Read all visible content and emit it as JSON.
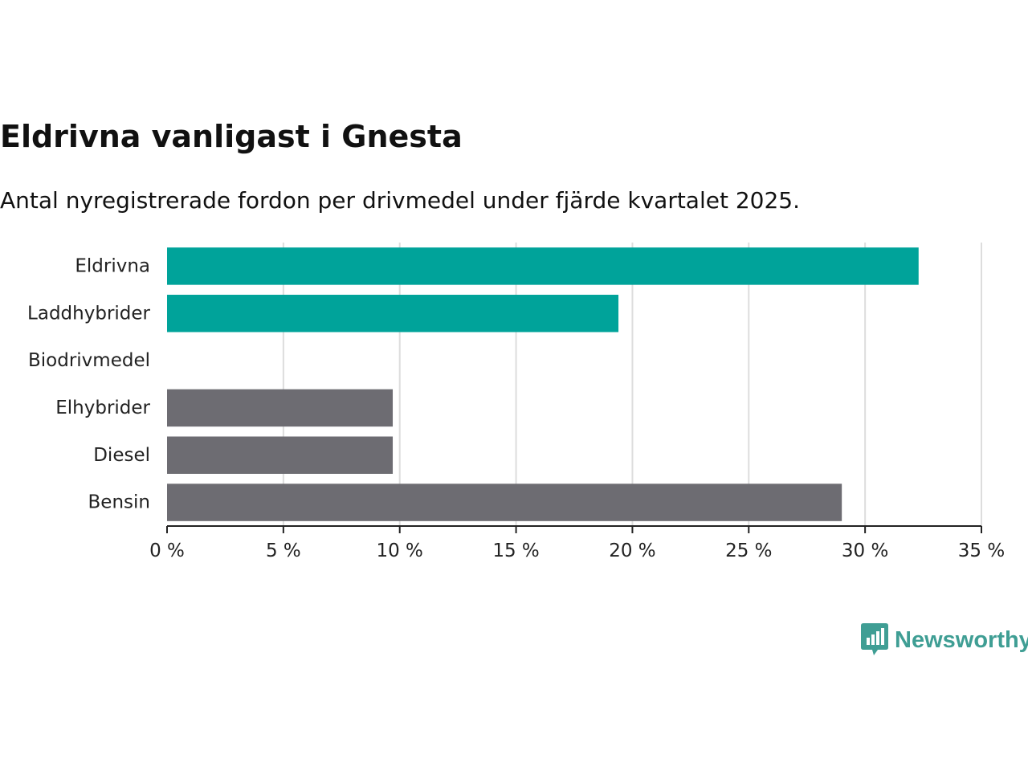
{
  "chart_data": {
    "type": "bar",
    "orientation": "horizontal",
    "title": "Eldrivna vanligast i Gnesta",
    "subtitle": "Antal nyregistrerade fordon per drivmedel under fjärde kvartalet 2025.",
    "categories": [
      "Eldrivna",
      "Laddhybrider",
      "Biodrivmedel",
      "Elhybrider",
      "Diesel",
      "Bensin"
    ],
    "values": [
      32.3,
      19.4,
      0,
      9.7,
      9.7,
      29.0
    ],
    "colors": [
      "#00a39a",
      "#00a39a",
      "#00a39a",
      "#6d6c72",
      "#6d6c72",
      "#6d6c72"
    ],
    "xlim": [
      0,
      35
    ],
    "xticks": [
      0,
      5,
      10,
      15,
      20,
      25,
      30,
      35
    ],
    "xtick_labels": [
      "0 %",
      "5 %",
      "10 %",
      "15 %",
      "20 %",
      "25 %",
      "30 %",
      "35 %"
    ],
    "xlabel": "",
    "ylabel": "",
    "grid": true,
    "grid_color": "#dddddd",
    "axis_color": "#222222"
  },
  "branding": {
    "logo_text": "Newsworthy",
    "logo_icon": "bar-chart-speech-bubble-icon",
    "color": "#3f9e94"
  }
}
